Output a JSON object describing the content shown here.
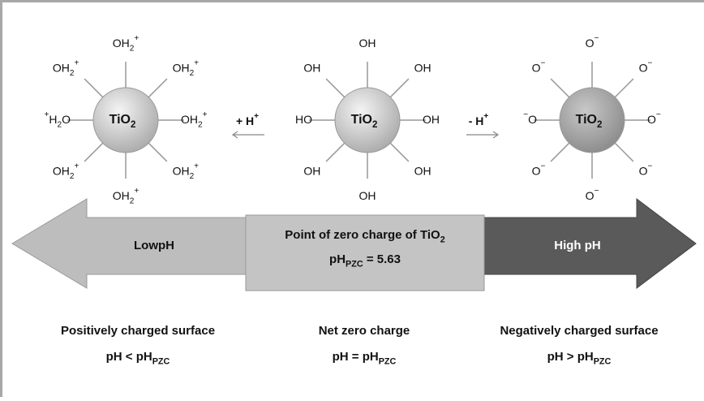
{
  "particles": [
    {
      "core": [
        {
          "text": "TiO"
        },
        {
          "sub": "2"
        }
      ],
      "ligands": [
        [
          {
            "text": "OH"
          },
          {
            "sub": "2"
          },
          {
            "sup": "+"
          }
        ],
        [
          {
            "text": "OH"
          },
          {
            "sub": "2"
          },
          {
            "sup": "+"
          }
        ],
        [
          {
            "text": "OH"
          },
          {
            "sub": "2"
          },
          {
            "sup": "+"
          }
        ],
        [
          {
            "text": "OH"
          },
          {
            "sub": "2"
          },
          {
            "sup": "+"
          }
        ],
        [
          {
            "text": "OH"
          },
          {
            "sub": "2"
          },
          {
            "sup": "+"
          }
        ],
        [
          {
            "text": "OH"
          },
          {
            "sub": "2"
          },
          {
            "sup": "+"
          }
        ],
        [
          {
            "sup": "+"
          },
          {
            "text": "H"
          },
          {
            "sub": "2"
          },
          {
            "text": "O"
          }
        ],
        [
          {
            "text": "OH"
          },
          {
            "sub": "2"
          },
          {
            "sup": "+"
          }
        ]
      ]
    },
    {
      "core": [
        {
          "text": "TiO"
        },
        {
          "sub": "2"
        }
      ],
      "ligands": [
        [
          {
            "text": "OH"
          }
        ],
        [
          {
            "text": "OH"
          }
        ],
        [
          {
            "text": "OH"
          }
        ],
        [
          {
            "text": "OH"
          }
        ],
        [
          {
            "text": "OH"
          }
        ],
        [
          {
            "text": "OH"
          }
        ],
        [
          {
            "text": "HO"
          }
        ],
        [
          {
            "text": "OH"
          }
        ]
      ]
    },
    {
      "core": [
        {
          "text": "TiO"
        },
        {
          "sub": "2"
        }
      ],
      "ligands": [
        [
          {
            "text": "O"
          },
          {
            "sup": "−"
          }
        ],
        [
          {
            "text": "O"
          },
          {
            "sup": "−"
          }
        ],
        [
          {
            "text": "O"
          },
          {
            "sup": "−"
          }
        ],
        [
          {
            "text": "O"
          },
          {
            "sup": "−"
          }
        ],
        [
          {
            "text": "O"
          },
          {
            "sup": "−"
          }
        ],
        [
          {
            "text": "O"
          },
          {
            "sup": "−"
          }
        ],
        [
          {
            "sup": "−"
          },
          {
            "text": "O"
          }
        ],
        [
          {
            "text": "O"
          },
          {
            "sup": "−"
          }
        ]
      ]
    }
  ],
  "proton_steps": [
    [
      {
        "text": "+ H"
      },
      {
        "sup": "+"
      }
    ],
    [
      {
        "text": "- H"
      },
      {
        "sup": "+"
      }
    ]
  ],
  "scale": {
    "low": "LowpH",
    "pzc_title": [
      {
        "text": "Point of zero charge of TiO"
      },
      {
        "sub": "2"
      }
    ],
    "pzc_value": [
      {
        "text": "pH"
      },
      {
        "sub": "PZC"
      },
      {
        "text": " = 5.63"
      }
    ],
    "high": "High pH"
  },
  "regions": [
    {
      "label": "Positively charged surface",
      "condition": [
        {
          "text": "pH < pH"
        },
        {
          "sub": "PZC"
        }
      ]
    },
    {
      "label": "Net zero charge",
      "condition": [
        {
          "text": "pH = pH"
        },
        {
          "sub": "PZC"
        }
      ]
    },
    {
      "label": "Negatively charged surface",
      "condition": [
        {
          "text": "pH > pH"
        },
        {
          "sub": "PZC"
        }
      ]
    }
  ]
}
